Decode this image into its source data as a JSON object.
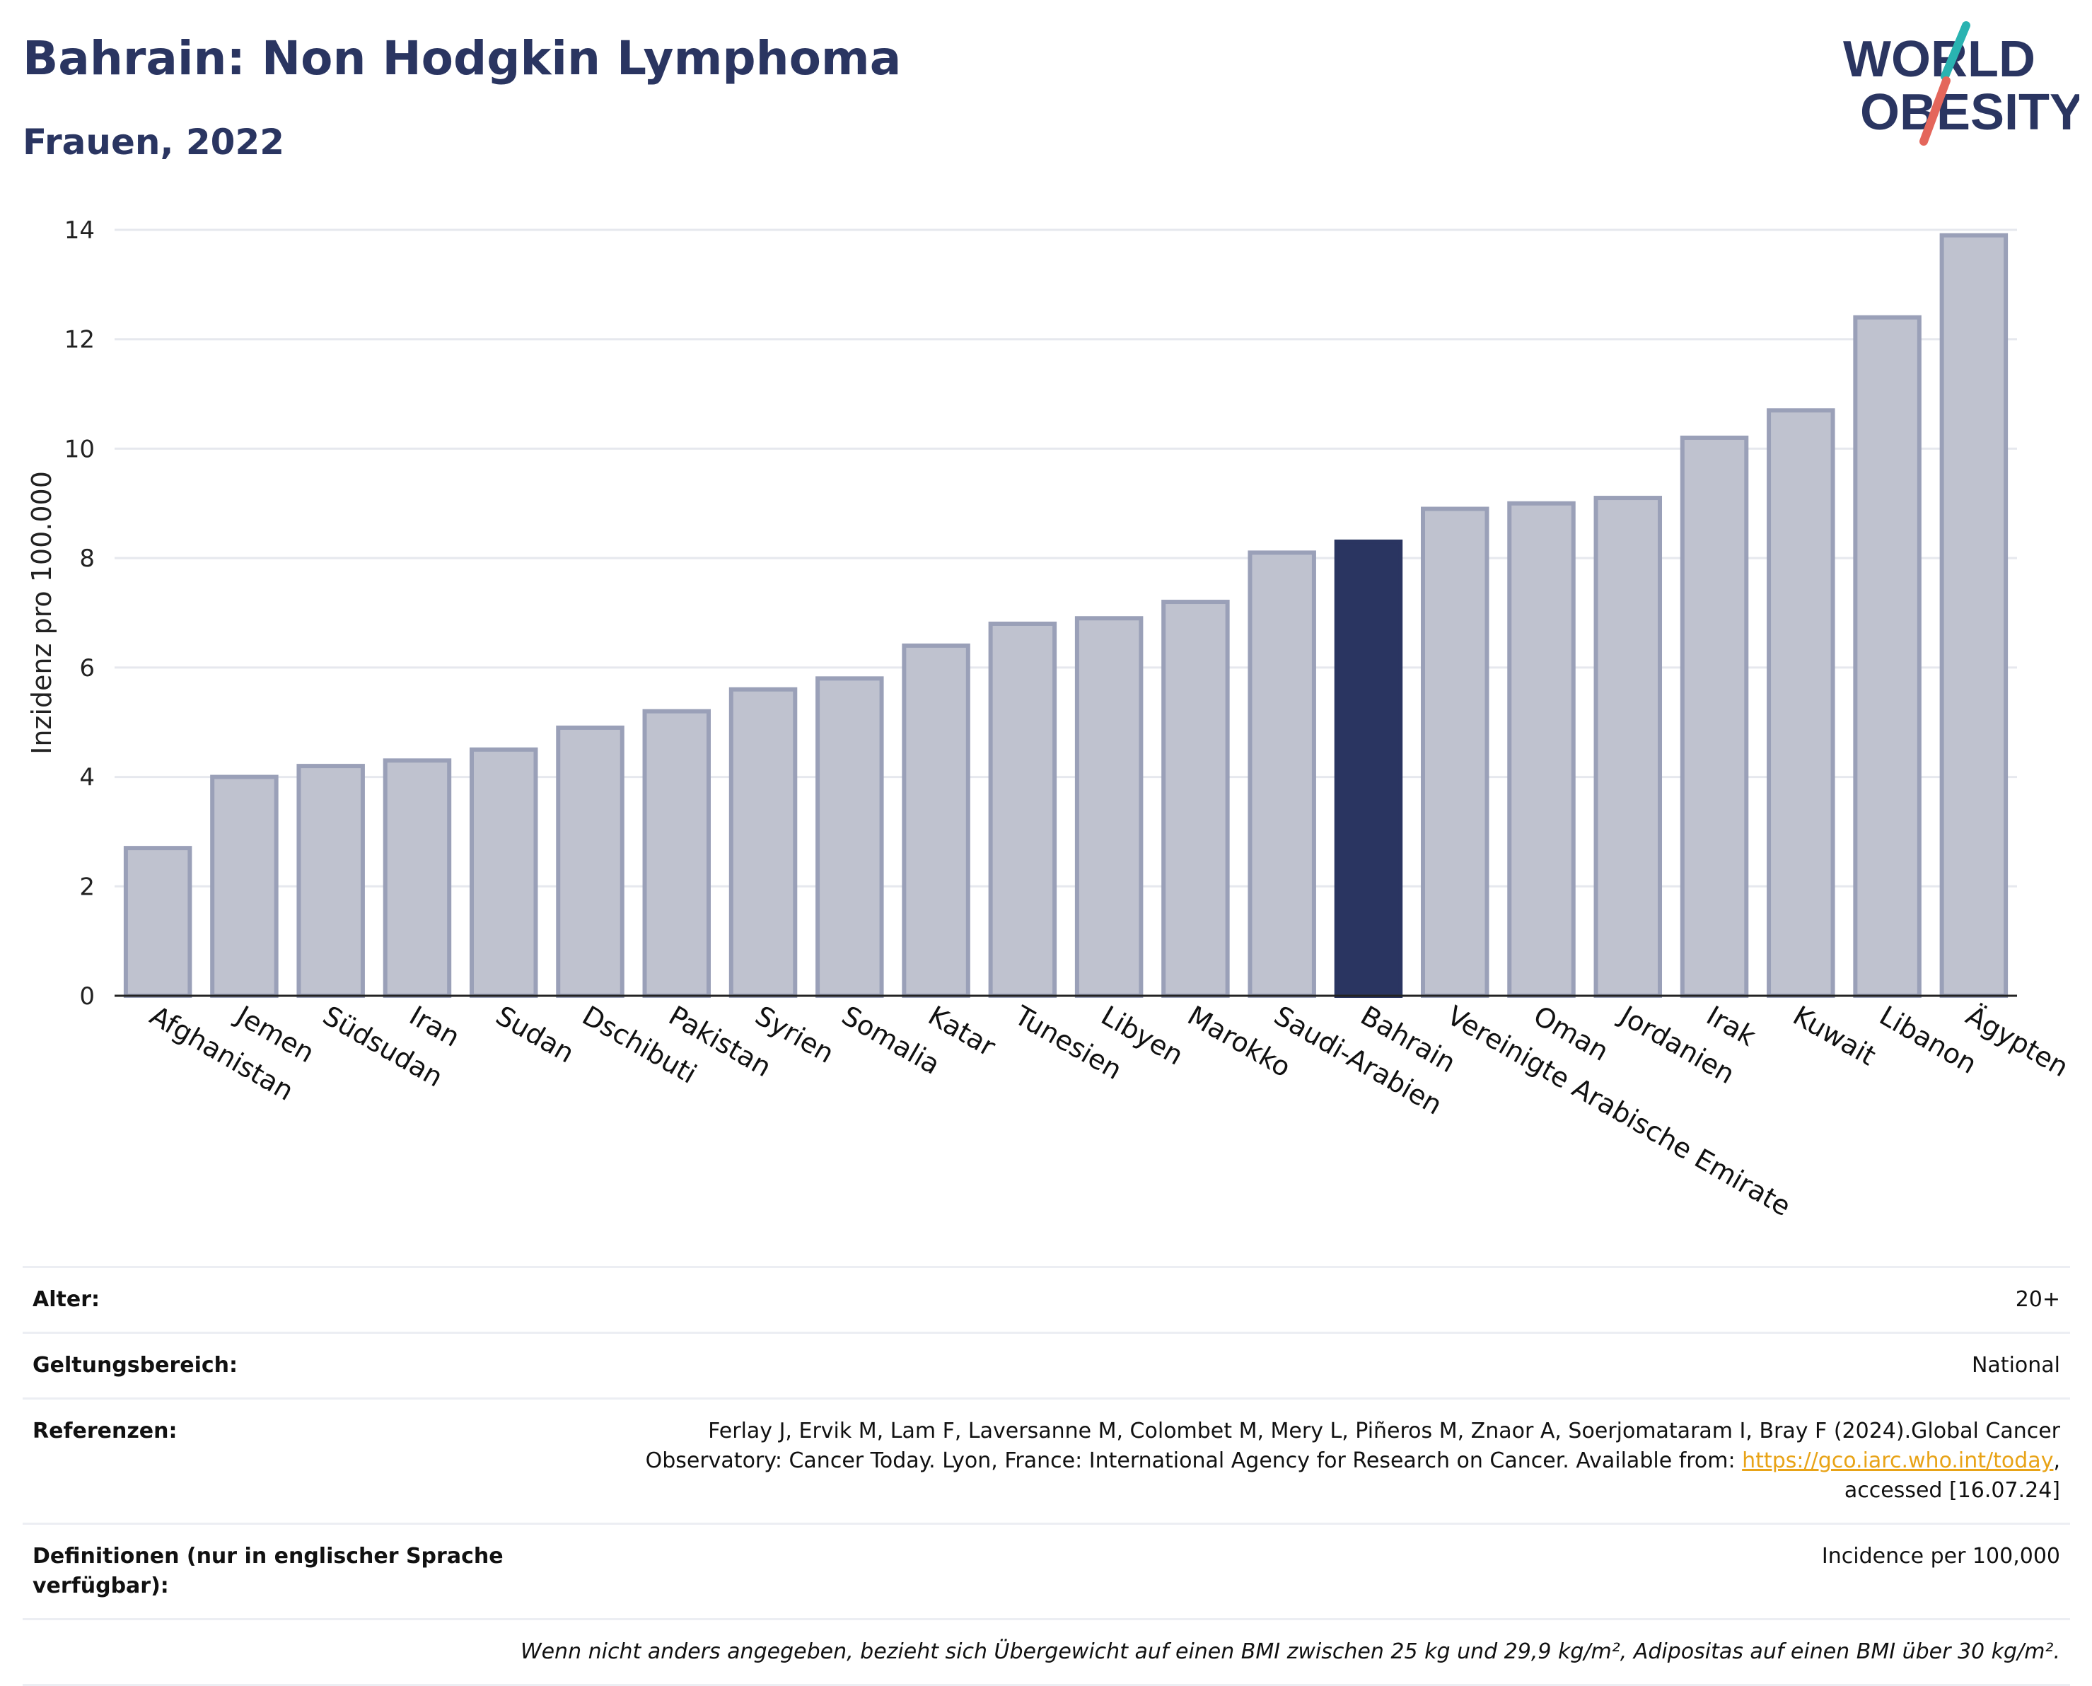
{
  "header": {
    "title": "Bahrain: Non Hodgkin Lymphoma",
    "subtitle": "Frauen, 2022",
    "logo_line1": "WORLD",
    "logo_line2": "OBESITY"
  },
  "colors": {
    "highlight": "#2a3561",
    "bar_fill": "#bfc2cf",
    "bar_stroke": "#9aa0b8",
    "title": "#2a3561",
    "logo_slash_teal": "#2ab3b1",
    "logo_slash_red": "#e4665b"
  },
  "chart_data": {
    "type": "bar",
    "ylabel": "Inzidenz pro 100.000",
    "xlabel": "",
    "ylim": [
      0,
      14
    ],
    "yticks": [
      0,
      2,
      4,
      6,
      8,
      10,
      12,
      14
    ],
    "grid": true,
    "highlight": "Bahrain",
    "categories": [
      "Afghanistan",
      "Jemen",
      "Südsudan",
      "Iran",
      "Sudan",
      "Dschibuti",
      "Pakistan",
      "Syrien",
      "Somalia",
      "Katar",
      "Tunesien",
      "Libyen",
      "Marokko",
      "Saudi-Arabien",
      "Bahrain",
      "Vereinigte Arabische Emirate",
      "Oman",
      "Jordanien",
      "Irak",
      "Kuwait",
      "Libanon",
      "Ägypten"
    ],
    "values": [
      2.7,
      4.0,
      4.2,
      4.3,
      4.5,
      4.9,
      5.2,
      5.6,
      5.8,
      6.4,
      6.8,
      6.9,
      7.2,
      8.1,
      8.3,
      8.9,
      9.0,
      9.1,
      10.2,
      10.7,
      12.4,
      13.9
    ]
  },
  "meta": {
    "age_label": "Alter:",
    "age_value": "20+",
    "scope_label": "Geltungsbereich:",
    "scope_value": "National",
    "refs_label": "Referenzen:",
    "refs_text_1": "Ferlay J, Ervik M, Lam F, Laversanne M, Colombet M, Mery L, Piñeros M, Znaor A, Soerjomataram I, Bray F (2024).Global Cancer Observatory: Cancer Today. Lyon, France: International Agency for Research on Cancer. Available from: ",
    "refs_link": "https://gco.iarc.who.int/today",
    "refs_text_2": ", accessed [16.07.24]",
    "defs_label": "Definitionen (nur in englischer Sprache verfügbar):",
    "defs_value": "Incidence per 100,000",
    "note": "Wenn nicht anders angegeben, bezieht sich Übergewicht auf einen BMI zwischen 25 kg und 29,9 kg/m², Adipositas auf einen BMI über 30 kg/m²."
  }
}
